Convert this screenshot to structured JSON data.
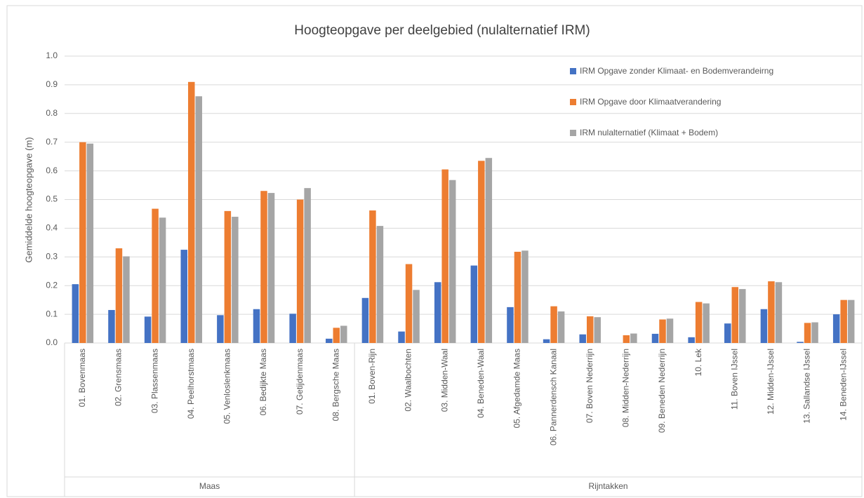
{
  "chart_data": {
    "type": "bar",
    "title": "Hoogteopgave per deelgebied (nulalternatief IRM)",
    "y_label": "Gemiddelde hoogteopgave (m)",
    "groups": [
      {
        "name": "Maas",
        "categories": [
          "01. Bovenmaas",
          "02. Grensmaas",
          "03. Plassenmaas",
          "04. Peelhorstmaas",
          "05. Venloslenkmaas",
          "06. Bedijkte Maas",
          "07. Getijdenmaas",
          "08. Bergsche Maas"
        ]
      },
      {
        "name": "Rijntakken",
        "categories": [
          "01. Boven-Rijn",
          "02. Waalbochten",
          "03. Midden-Waal",
          "04. Beneden-Waal",
          "05. Afgedamde Maas",
          "06. Pannerdensch Kanaal",
          "07. Boven Nederrijn",
          "08. Midden-Nederrijn",
          "09. Beneden Nederrijn",
          "10. Lek",
          "11. Boven IJssel",
          "12. Midden-IJssel",
          "13. Sallandse IJssel",
          "14. Beneden-IJssel"
        ]
      }
    ],
    "series": [
      {
        "name": "IRM Opgave zonder Klimaat- en Bodemverandeirng",
        "color": "#4472c4",
        "values": [
          0.205,
          0.115,
          0.092,
          0.325,
          0.097,
          0.118,
          0.102,
          0.015,
          0.157,
          0.04,
          0.212,
          0.27,
          0.125,
          0.013,
          0.03,
          0,
          0.032,
          0.02,
          0.068,
          0.118,
          0.004,
          0.1
        ]
      },
      {
        "name": "IRM Opgave door Klimaatverandering",
        "color": "#ed7d31",
        "values": [
          0.7,
          0.33,
          0.468,
          0.91,
          0.46,
          0.53,
          0.5,
          0.053,
          0.462,
          0.275,
          0.605,
          0.635,
          0.318,
          0.128,
          0.093,
          0.027,
          0.082,
          0.143,
          0.195,
          0.215,
          0.07,
          0.15
        ]
      },
      {
        "name": "IRM nulalternatief (Klimaat + Bodem)",
        "color": "#a5a5a5",
        "values": [
          0.695,
          0.302,
          0.437,
          0.86,
          0.44,
          0.523,
          0.54,
          0.06,
          0.408,
          0.185,
          0.568,
          0.645,
          0.322,
          0.11,
          0.09,
          0.033,
          0.085,
          0.138,
          0.188,
          0.212,
          0.072,
          0.15
        ]
      }
    ],
    "ylim": [
      0,
      1
    ],
    "yticks": [
      {
        "value": 0,
        "label": "0.0"
      },
      0.1,
      0.2,
      0.3,
      0.4,
      0.5,
      0.6,
      0.7,
      0.8,
      0.9,
      {
        "value": 1,
        "label": "1.0"
      }
    ],
    "grid": true,
    "legend": "top-right"
  }
}
